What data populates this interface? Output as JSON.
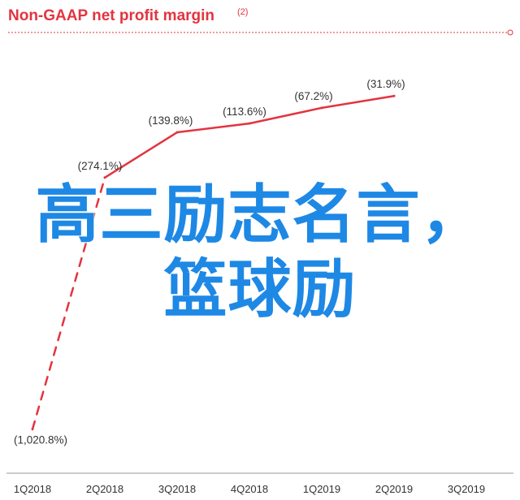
{
  "chart_data": {
    "type": "line",
    "title": "Non-GAAP net profit margin",
    "title_note": "(2)",
    "categories": [
      "1Q2018",
      "2Q2018",
      "3Q2018",
      "4Q2018",
      "1Q2019",
      "2Q2019",
      "3Q2019"
    ],
    "values": [
      -1020.8,
      -274.1,
      -139.8,
      -113.6,
      -67.2,
      -31.9,
      null
    ],
    "data_labels": [
      "(1,020.8%)",
      "(274.1%)",
      "(139.8%)",
      "(113.6%)",
      "(67.2%)",
      "(31.9%)",
      ""
    ],
    "dashed_segment": [
      0,
      1
    ],
    "ylim": [
      -1060,
      0
    ],
    "grid": false,
    "legend": "none",
    "colors": {
      "line": "#e3343f",
      "text": "#333333",
      "title": "#e3343f",
      "axis": "#999999"
    }
  },
  "overlay": {
    "line1": "高三励志名言，",
    "line2": "篮球励"
  }
}
